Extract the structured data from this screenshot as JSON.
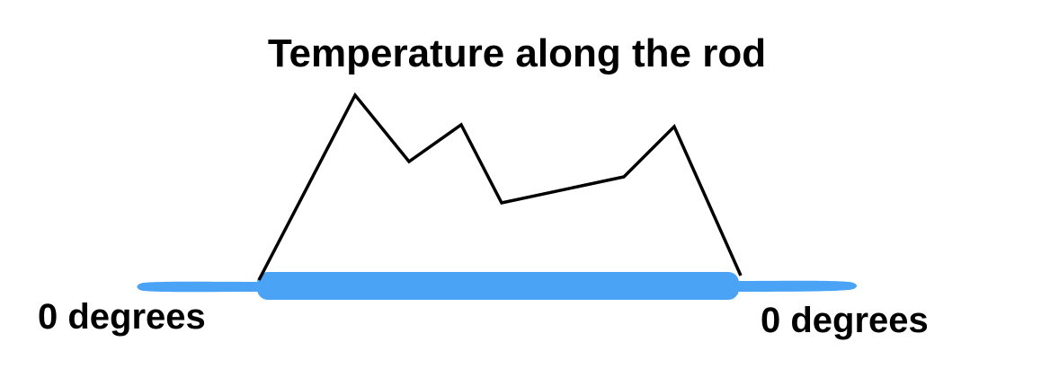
{
  "title": "Temperature along the rod",
  "left_label": "0 degrees",
  "right_label": "0 degrees",
  "colors": {
    "rod": "#4aa3f5",
    "curve": "#000000",
    "text": "#000000"
  }
}
